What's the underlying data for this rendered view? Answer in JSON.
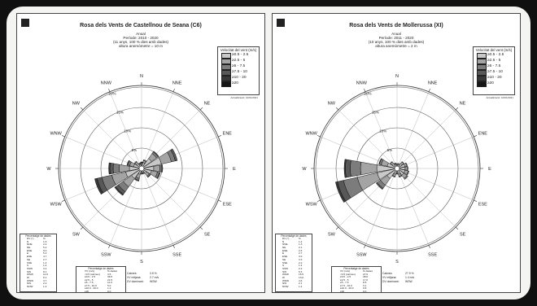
{
  "legend_colors": [
    "#c8c8c8",
    "#a4a4a4",
    "#7c7c7c",
    "#585858",
    "#383838",
    "#161616"
  ],
  "chart_data": [
    {
      "type": "wind-rose",
      "title": "Rosa dels Vents de Castellnou de Seana (C6)",
      "subtitle": [
        "Anual",
        "Període: 2010 - 2020",
        "(11 anys, 100 % dies amb dades)",
        "altura anemòmetre = 10 m"
      ],
      "directions": [
        "N",
        "NNE",
        "NE",
        "ENE",
        "E",
        "ESE",
        "SE",
        "SSE",
        "S",
        "SSW",
        "SW",
        "WSW",
        "W",
        "WNW",
        "NW",
        "NNW"
      ],
      "ring_labels": [
        "5%",
        "10%",
        "15%",
        "20%"
      ],
      "rmax": 20,
      "legend_title": "Velocitat del vent (m/s)",
      "speed_classes": [
        "≥0.5 - 2.5",
        "≥2.5 - 5",
        "≥5 - 7.5",
        "≥7.5 - 10",
        "≥10 - 20",
        "≥20"
      ],
      "series": [
        [
          1.0,
          0.3,
          0.2,
          0.1,
          0.0,
          0
        ],
        [
          1.5,
          0.5,
          0.2,
          0.0,
          0.0,
          0
        ],
        [
          3.0,
          1.5,
          0.5,
          0.2,
          0.0,
          0
        ],
        [
          5.0,
          2.5,
          1.0,
          0.5,
          0.0,
          0
        ],
        [
          3.0,
          1.5,
          0.5,
          0.2,
          0.0,
          0
        ],
        [
          2.5,
          1.5,
          0.5,
          0.2,
          0.0,
          0
        ],
        [
          1.5,
          0.8,
          0.3,
          0.1,
          0.0,
          0
        ],
        [
          1.0,
          0.3,
          0.1,
          0.0,
          0.0,
          0
        ],
        [
          1.0,
          0.3,
          0.1,
          0.0,
          0.0,
          0
        ],
        [
          1.5,
          1.0,
          0.5,
          0.2,
          0.0,
          0
        ],
        [
          3.0,
          2.5,
          1.5,
          0.8,
          0.3,
          0
        ],
        [
          4.0,
          3.5,
          2.5,
          1.2,
          0.6,
          0
        ],
        [
          3.0,
          2.5,
          1.5,
          0.8,
          0.3,
          0
        ],
        [
          2.0,
          1.0,
          0.5,
          0.2,
          0.0,
          0
        ],
        [
          1.5,
          0.5,
          0.2,
          0.0,
          0.0,
          0
        ],
        [
          1.0,
          0.3,
          0.1,
          0.0,
          0.0,
          0
        ]
      ],
      "updated": "Actualització: 10/01/2021",
      "dir_table": {
        "title": "Percentatge de dades",
        "col_dir": "DV (°)",
        "col_pct": "%",
        "rows": [
          [
            "N",
            "1.6"
          ],
          [
            "NNE",
            "2.2"
          ],
          [
            "NE",
            "5.2"
          ],
          [
            "ENE",
            "9.0"
          ],
          [
            "E",
            "5.2"
          ],
          [
            "ESE",
            "4.7"
          ],
          [
            "SE",
            "2.7"
          ],
          [
            "SSE",
            "1.4"
          ],
          [
            "S",
            "1.4"
          ],
          [
            "SSW",
            "3.2"
          ],
          [
            "SW",
            "8.1"
          ],
          [
            "WSW",
            "11.8"
          ],
          [
            "W",
            "8.1"
          ],
          [
            "WNW",
            "3.7"
          ],
          [
            "NW",
            "2.2"
          ],
          [
            "NNW",
            "1.4"
          ]
        ]
      },
      "speed_table": {
        "title": "Percentatge de dades",
        "col_speed": "VV (m/s)",
        "col_pct": "% dades",
        "rows": [
          [
            "<0.5 (calmes)",
            "3.5"
          ],
          [
            "≥0.5 - 2.5",
            "36.5"
          ],
          [
            "≥2.5 - 5",
            "21.5"
          ],
          [
            "≥5 - 7.5",
            "11.0"
          ],
          [
            "≥7.5 - 10.0",
            "5.0"
          ],
          [
            "≥10.0 - 20.0",
            "1.2"
          ],
          [
            "≥20",
            "0.0"
          ]
        ]
      },
      "stats": [
        [
          "Calmes:",
          "3.5 %"
        ],
        [
          "VV mitjana:",
          "2.7 m/s"
        ],
        [
          "DV dominant:",
          "WSW"
        ]
      ]
    },
    {
      "type": "wind-rose",
      "title": "Rosa dels Vents de Mollerussa (XI)",
      "subtitle": [
        "Anual",
        "Període: 2011 - 2020",
        "(10 anys, 100 % dies amb dades)",
        "altura anemòmetre = 2 m"
      ],
      "directions": [
        "N",
        "NNE",
        "NE",
        "ENE",
        "E",
        "ESE",
        "SE",
        "SSE",
        "S",
        "SSW",
        "SW",
        "WSW",
        "W",
        "WNW",
        "NW",
        "NNW"
      ],
      "ring_labels": [
        "5%",
        "10%",
        "15%",
        "20%"
      ],
      "rmax": 20,
      "legend_title": "Velocitat del vent (m/s)",
      "speed_classes": [
        "≥0.5 - 2.5",
        "≥2.5 - 5",
        "≥5 - 7.5",
        "≥7.5 - 10",
        "≥10 - 20",
        "≥20"
      ],
      "series": [
        [
          1.0,
          0.2,
          0.0,
          0.0,
          0.0,
          0
        ],
        [
          1.0,
          0.3,
          0.0,
          0.0,
          0.0,
          0
        ],
        [
          1.5,
          0.5,
          0.1,
          0.0,
          0.0,
          0
        ],
        [
          2.0,
          0.5,
          0.1,
          0.0,
          0.0,
          0
        ],
        [
          2.0,
          0.6,
          0.1,
          0.0,
          0.0,
          0
        ],
        [
          2.0,
          0.8,
          0.2,
          0.0,
          0.0,
          0
        ],
        [
          2.0,
          1.0,
          0.3,
          0.0,
          0.0,
          0
        ],
        [
          1.5,
          0.5,
          0.2,
          0.0,
          0.0,
          0
        ],
        [
          1.0,
          0.3,
          0.1,
          0.0,
          0.0,
          0
        ],
        [
          1.5,
          0.5,
          0.2,
          0.0,
          0.0,
          0
        ],
        [
          3.0,
          2.0,
          1.0,
          0.3,
          0.0,
          0
        ],
        [
          5.0,
          5.0,
          3.5,
          1.5,
          0.5,
          0
        ],
        [
          5.0,
          4.0,
          2.5,
          1.2,
          0.3,
          0
        ],
        [
          2.5,
          1.5,
          0.5,
          0.1,
          0.0,
          0
        ],
        [
          1.5,
          0.5,
          0.1,
          0.0,
          0.0,
          0
        ],
        [
          1.0,
          0.3,
          0.1,
          0.0,
          0.0,
          0
        ]
      ],
      "updated": "Actualització: 10/01/2021",
      "dir_table": {
        "title": "Percentatge de dades",
        "col_dir": "DV (°)",
        "col_pct": "%",
        "rows": [
          [
            "N",
            "1.2"
          ],
          [
            "NNE",
            "1.3"
          ],
          [
            "NE",
            "2.1"
          ],
          [
            "ENE",
            "2.6"
          ],
          [
            "E",
            "2.7"
          ],
          [
            "ESE",
            "3.0"
          ],
          [
            "SE",
            "3.3"
          ],
          [
            "SSE",
            "2.2"
          ],
          [
            "S",
            "1.4"
          ],
          [
            "SSW",
            "2.2"
          ],
          [
            "SW",
            "6.3"
          ],
          [
            "WSW",
            "15.5"
          ],
          [
            "W",
            "13.0"
          ],
          [
            "WNW",
            "4.6"
          ],
          [
            "NW",
            "2.1"
          ],
          [
            "NNW",
            "1.4"
          ]
        ]
      },
      "speed_table": {
        "title": "Percentatge de dades",
        "col_speed": "VV (m/s)",
        "col_pct": "% dades",
        "rows": [
          [
            "<0.5 (calmes)",
            "27.9"
          ],
          [
            "≥0.5 - 2.5",
            "38.0"
          ],
          [
            "≥2.5 - 5",
            "17.0"
          ],
          [
            "≥5 - 7.5",
            "8.5"
          ],
          [
            "≥7.5 - 10.0",
            "3.1"
          ],
          [
            "≥10.0 - 20.0",
            "0.8"
          ],
          [
            "≥20",
            "0.0"
          ]
        ]
      },
      "stats": [
        [
          "Calmes:",
          "27.9 %"
        ],
        [
          "VV mitjana:",
          "1.4 m/s"
        ],
        [
          "DV dominant:",
          "WSW"
        ]
      ]
    }
  ]
}
